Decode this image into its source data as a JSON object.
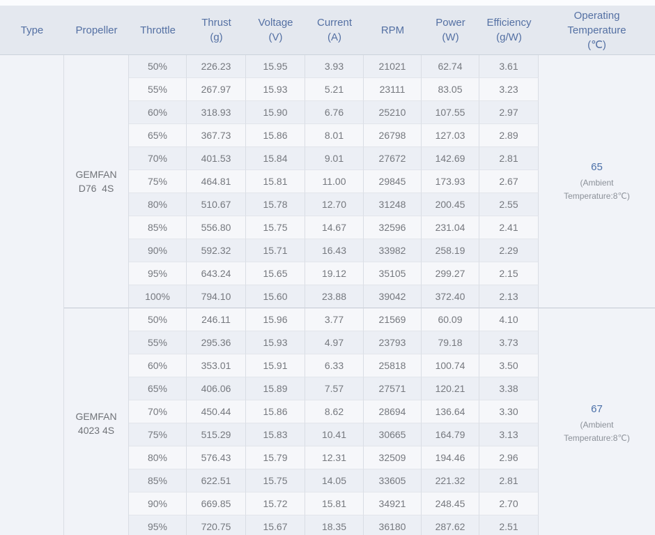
{
  "table": {
    "headers": [
      {
        "id": "type",
        "label": "Type"
      },
      {
        "id": "propeller",
        "label": "Propeller"
      },
      {
        "id": "throttle",
        "label": "Throttle"
      },
      {
        "id": "thrust",
        "label": "Thrust\n(g)"
      },
      {
        "id": "voltage",
        "label": "Voltage\n(V)"
      },
      {
        "id": "current",
        "label": "Current\n(A)"
      },
      {
        "id": "rpm",
        "label": "RPM"
      },
      {
        "id": "power",
        "label": "Power\n(W)"
      },
      {
        "id": "efficiency",
        "label": "Efficiency\n(g/W)"
      },
      {
        "id": "temperature",
        "label": "Operating\nTemperature\n(℃)"
      }
    ],
    "type_value": "",
    "groups": [
      {
        "propeller": "GEMFAN\nD76  4S",
        "temperature": {
          "value": "65",
          "note": "(Ambient Temperature:8℃)"
        },
        "rows": [
          {
            "throttle": "50%",
            "thrust": "226.23",
            "voltage": "15.95",
            "current": "3.93",
            "rpm": "21021",
            "power": "62.74",
            "efficiency": "3.61"
          },
          {
            "throttle": "55%",
            "thrust": "267.97",
            "voltage": "15.93",
            "current": "5.21",
            "rpm": "23111",
            "power": "83.05",
            "efficiency": "3.23"
          },
          {
            "throttle": "60%",
            "thrust": "318.93",
            "voltage": "15.90",
            "current": "6.76",
            "rpm": "25210",
            "power": "107.55",
            "efficiency": "2.97"
          },
          {
            "throttle": "65%",
            "thrust": "367.73",
            "voltage": "15.86",
            "current": "8.01",
            "rpm": "26798",
            "power": "127.03",
            "efficiency": "2.89"
          },
          {
            "throttle": "70%",
            "thrust": "401.53",
            "voltage": "15.84",
            "current": "9.01",
            "rpm": "27672",
            "power": "142.69",
            "efficiency": "2.81"
          },
          {
            "throttle": "75%",
            "thrust": "464.81",
            "voltage": "15.81",
            "current": "11.00",
            "rpm": "29845",
            "power": "173.93",
            "efficiency": "2.67"
          },
          {
            "throttle": "80%",
            "thrust": "510.67",
            "voltage": "15.78",
            "current": "12.70",
            "rpm": "31248",
            "power": "200.45",
            "efficiency": "2.55"
          },
          {
            "throttle": "85%",
            "thrust": "556.80",
            "voltage": "15.75",
            "current": "14.67",
            "rpm": "32596",
            "power": "231.04",
            "efficiency": "2.41"
          },
          {
            "throttle": "90%",
            "thrust": "592.32",
            "voltage": "15.71",
            "current": "16.43",
            "rpm": "33982",
            "power": "258.19",
            "efficiency": "2.29"
          },
          {
            "throttle": "95%",
            "thrust": "643.24",
            "voltage": "15.65",
            "current": "19.12",
            "rpm": "35105",
            "power": "299.27",
            "efficiency": "2.15"
          },
          {
            "throttle": "100%",
            "thrust": "794.10",
            "voltage": "15.60",
            "current": "23.88",
            "rpm": "39042",
            "power": "372.40",
            "efficiency": "2.13"
          }
        ]
      },
      {
        "propeller": "GEMFAN\n4023 4S",
        "temperature": {
          "value": "67",
          "note": "(Ambient Temperature:8℃)"
        },
        "rows": [
          {
            "throttle": "50%",
            "thrust": "246.11",
            "voltage": "15.96",
            "current": "3.77",
            "rpm": "21569",
            "power": "60.09",
            "efficiency": "4.10"
          },
          {
            "throttle": "55%",
            "thrust": "295.36",
            "voltage": "15.93",
            "current": "4.97",
            "rpm": "23793",
            "power": "79.18",
            "efficiency": "3.73"
          },
          {
            "throttle": "60%",
            "thrust": "353.01",
            "voltage": "15.91",
            "current": "6.33",
            "rpm": "25818",
            "power": "100.74",
            "efficiency": "3.50"
          },
          {
            "throttle": "65%",
            "thrust": "406.06",
            "voltage": "15.89",
            "current": "7.57",
            "rpm": "27571",
            "power": "120.21",
            "efficiency": "3.38"
          },
          {
            "throttle": "70%",
            "thrust": "450.44",
            "voltage": "15.86",
            "current": "8.62",
            "rpm": "28694",
            "power": "136.64",
            "efficiency": "3.30"
          },
          {
            "throttle": "75%",
            "thrust": "515.29",
            "voltage": "15.83",
            "current": "10.41",
            "rpm": "30665",
            "power": "164.79",
            "efficiency": "3.13"
          },
          {
            "throttle": "80%",
            "thrust": "576.43",
            "voltage": "15.79",
            "current": "12.31",
            "rpm": "32509",
            "power": "194.46",
            "efficiency": "2.96"
          },
          {
            "throttle": "85%",
            "thrust": "622.51",
            "voltage": "15.75",
            "current": "14.05",
            "rpm": "33605",
            "power": "221.32",
            "efficiency": "2.81"
          },
          {
            "throttle": "90%",
            "thrust": "669.85",
            "voltage": "15.72",
            "current": "15.81",
            "rpm": "34921",
            "power": "248.45",
            "efficiency": "2.70"
          },
          {
            "throttle": "95%",
            "thrust": "720.75",
            "voltage": "15.67",
            "current": "18.35",
            "rpm": "36180",
            "power": "287.62",
            "efficiency": "2.51"
          }
        ]
      }
    ]
  },
  "colors": {
    "header_bg": "#e4e8ef",
    "header_text": "#5470a3",
    "row_dark": "#eceff5",
    "row_light": "#f6f7fa",
    "merged_bg": "#f1f3f8",
    "body_text": "#75787e",
    "temp_value_text": "#4a6fa8",
    "temp_note_text": "#8b9098",
    "group_divider": "#c3c9d3",
    "cell_divider": "#d9dde4"
  }
}
